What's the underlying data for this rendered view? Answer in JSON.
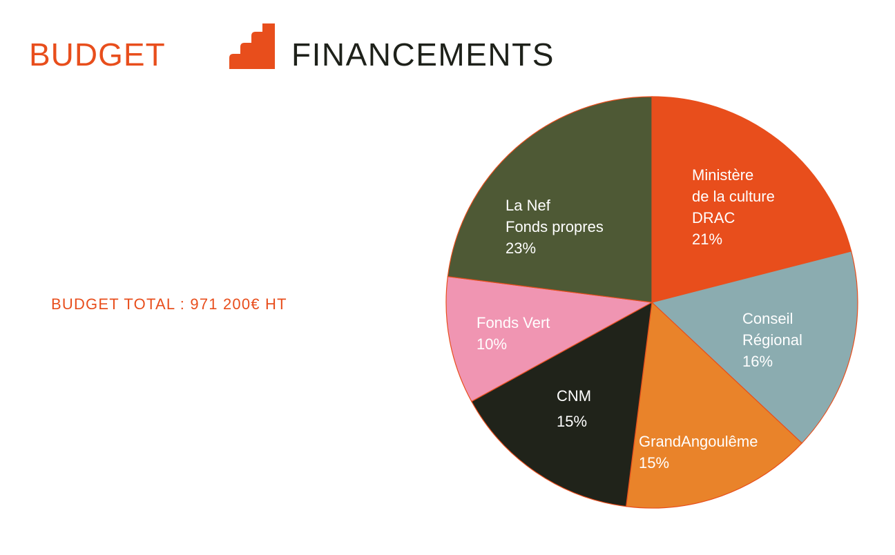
{
  "header": {
    "title_left": "BUDGET",
    "title_right": "FINANCEMENTS",
    "logo_icon": "stepped-bars-icon"
  },
  "total_label": "BUDGET TOTAL : 971 200€ HT",
  "colors": {
    "accent": "#E84E1C",
    "dark_text": "#1E211A",
    "slice_outline": "#E84E1C"
  },
  "chart_data": {
    "type": "pie",
    "slices": [
      {
        "label_lines": [
          "Ministère",
          "de la culture",
          "DRAC"
        ],
        "value": 21,
        "value_label": "21%",
        "color": "#E84E1C"
      },
      {
        "label_lines": [
          "Conseil",
          "Régional"
        ],
        "value": 16,
        "value_label": "16%",
        "color": "#8BACB0"
      },
      {
        "label_lines": [
          "GrandAngoulême"
        ],
        "value": 15,
        "value_label": "15%",
        "color": "#E9832A"
      },
      {
        "label_lines": [
          "CNM"
        ],
        "value": 15,
        "value_label": "15%",
        "color": "#20231A"
      },
      {
        "label_lines": [
          "Fonds Vert"
        ],
        "value": 10,
        "value_label": "10%",
        "color": "#F095B2"
      },
      {
        "label_lines": [
          "La Nef",
          "Fonds propres"
        ],
        "value": 23,
        "value_label": "23%",
        "color": "#4E5935"
      }
    ]
  }
}
